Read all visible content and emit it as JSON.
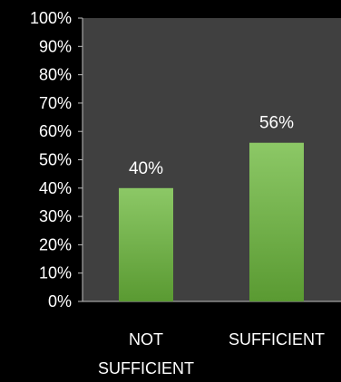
{
  "chart_data": {
    "type": "bar",
    "categories": [
      [
        "NOT",
        "SUFFICIENT"
      ],
      [
        "SUFFICIENT"
      ]
    ],
    "values": [
      40,
      56
    ],
    "data_labels": [
      "40%",
      "56%"
    ],
    "y_ticks": [
      "0%",
      "10%",
      "20%",
      "30%",
      "40%",
      "50%",
      "60%",
      "70%",
      "80%",
      "90%",
      "100%"
    ],
    "ylim": [
      0,
      100
    ],
    "grid": false,
    "legend": "none"
  },
  "colors": {
    "page_background": "#000000",
    "plot_background": "#404040",
    "bar_top": "#8cc866",
    "bar_bottom": "#5a9a32",
    "axis": "#bfbfbf",
    "text": "#ffffff"
  }
}
